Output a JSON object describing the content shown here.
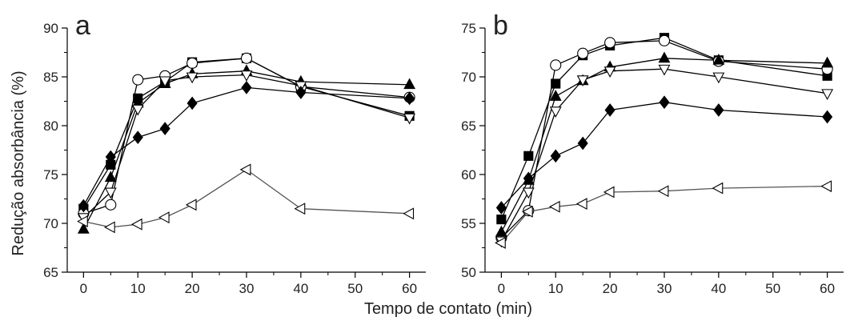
{
  "figure": {
    "xlabel": "Tempo de contato (min)",
    "ylabel": "Redução absorbância (%)"
  },
  "chart_data": [
    {
      "type": "line",
      "panel_label": "a",
      "xlabel": "Tempo de contato (min)",
      "ylabel": "Redução absorbância (%)",
      "xlim": [
        -3,
        63
      ],
      "ylim": [
        65,
        90
      ],
      "xticks": [
        0,
        10,
        20,
        30,
        40,
        50,
        60
      ],
      "yticks": [
        65,
        70,
        75,
        80,
        85,
        90
      ],
      "grid": false,
      "legend": "none",
      "series": [
        {
          "marker": "square-filled",
          "x": [
            0,
            5,
            10,
            15,
            20,
            30,
            40,
            60
          ],
          "y": [
            71.5,
            76.0,
            82.8,
            84.5,
            86.5,
            86.9,
            84.0,
            81.0
          ]
        },
        {
          "marker": "circle-open",
          "x": [
            0,
            5,
            10,
            15,
            20,
            30,
            40,
            60
          ],
          "y": [
            71.0,
            71.9,
            84.7,
            85.1,
            86.4,
            86.9,
            84.0,
            82.9
          ]
        },
        {
          "marker": "triangle-up-filled",
          "x": [
            0,
            5,
            10,
            15,
            20,
            30,
            40,
            60
          ],
          "y": [
            69.4,
            74.7,
            82.3,
            84.3,
            85.3,
            85.6,
            84.5,
            84.2
          ]
        },
        {
          "marker": "triangle-down-open",
          "x": [
            0,
            5,
            10,
            15,
            20,
            30,
            40,
            60
          ],
          "y": [
            70.6,
            73.2,
            81.7,
            84.6,
            85.0,
            85.2,
            84.1,
            80.8
          ]
        },
        {
          "marker": "diamond-filled",
          "x": [
            0,
            5,
            10,
            15,
            20,
            30,
            40,
            60
          ],
          "y": [
            71.8,
            76.8,
            78.8,
            79.7,
            82.3,
            83.9,
            83.4,
            82.8
          ]
        },
        {
          "marker": "triangle-left-open",
          "x": [
            0,
            5,
            10,
            15,
            20,
            30,
            40,
            60
          ],
          "y": [
            70.2,
            69.6,
            69.9,
            70.6,
            71.9,
            75.5,
            71.5,
            71.0
          ]
        }
      ]
    },
    {
      "type": "line",
      "panel_label": "b",
      "xlabel": "Tempo de contato (min)",
      "ylabel": "",
      "xlim": [
        -3,
        63
      ],
      "ylim": [
        50,
        75
      ],
      "xticks": [
        0,
        10,
        20,
        30,
        40,
        50,
        60
      ],
      "yticks": [
        50,
        55,
        60,
        65,
        70,
        75
      ],
      "grid": false,
      "legend": "none",
      "series": [
        {
          "marker": "square-filled",
          "x": [
            0,
            5,
            10,
            15,
            20,
            30,
            40,
            60
          ],
          "y": [
            55.4,
            61.9,
            69.3,
            72.2,
            73.2,
            74.0,
            71.7,
            70.1
          ]
        },
        {
          "marker": "circle-open",
          "x": [
            0,
            5,
            10,
            15,
            20,
            30,
            40,
            60
          ],
          "y": [
            53.5,
            56.3,
            71.2,
            72.4,
            73.5,
            73.7,
            71.6,
            70.8
          ]
        },
        {
          "marker": "triangle-up-filled",
          "x": [
            0,
            5,
            10,
            15,
            20,
            30,
            40,
            60
          ],
          "y": [
            54.1,
            59.4,
            68.0,
            69.6,
            71.0,
            71.9,
            71.7,
            71.4
          ]
        },
        {
          "marker": "triangle-down-open",
          "x": [
            0,
            5,
            10,
            15,
            20,
            30,
            40,
            60
          ],
          "y": [
            53.2,
            58.2,
            66.5,
            69.7,
            70.6,
            70.8,
            70.0,
            68.3
          ]
        },
        {
          "marker": "diamond-filled",
          "x": [
            0,
            5,
            10,
            15,
            20,
            30,
            40,
            60
          ],
          "y": [
            56.6,
            59.6,
            61.9,
            63.2,
            66.6,
            67.4,
            66.6,
            65.9
          ]
        },
        {
          "marker": "triangle-left-open",
          "x": [
            0,
            5,
            10,
            15,
            20,
            30,
            40,
            60
          ],
          "y": [
            53.0,
            56.2,
            56.7,
            57.0,
            58.2,
            58.3,
            58.6,
            58.8
          ]
        }
      ]
    }
  ]
}
